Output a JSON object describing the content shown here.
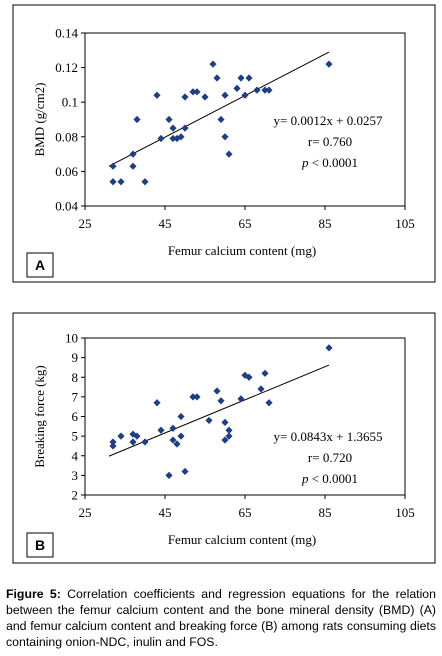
{
  "chart_data": [
    {
      "type": "scatter",
      "panel_label": "A",
      "xlabel": "Femur calcium content (mg)",
      "ylabel": "BMD (g/cm2)",
      "color": "#1f3f80",
      "xlim": [
        25,
        105
      ],
      "xticks": [
        25,
        45,
        65,
        85,
        105
      ],
      "ylim": [
        0.04,
        0.14
      ],
      "yticks": [
        0.04,
        0.06,
        0.08,
        0.1,
        0.12,
        0.14
      ],
      "x": [
        32,
        32,
        34,
        37,
        37,
        38,
        40,
        43,
        44,
        46,
        47,
        47,
        48,
        49,
        50,
        50,
        52,
        53,
        55,
        57,
        58,
        59,
        60,
        60,
        61,
        63,
        64,
        65,
        66,
        68,
        70,
        71,
        86
      ],
      "y": [
        0.063,
        0.054,
        0.054,
        0.063,
        0.07,
        0.09,
        0.054,
        0.104,
        0.079,
        0.09,
        0.085,
        0.079,
        0.079,
        0.08,
        0.085,
        0.103,
        0.106,
        0.106,
        0.103,
        0.122,
        0.114,
        0.09,
        0.08,
        0.104,
        0.07,
        0.108,
        0.114,
        0.104,
        0.114,
        0.107,
        0.107,
        0.107,
        0.122
      ],
      "fit_line": {
        "x": [
          31,
          86
        ],
        "y": [
          0.063,
          0.129
        ]
      },
      "annotation": {
        "equation": "y= 0.0012x + 0.0257",
        "r": "r= 0.760",
        "p_symbol": "p",
        "p_text": " < 0.0001"
      }
    },
    {
      "type": "scatter",
      "panel_label": "B",
      "xlabel": "Femur calcium content (mg)",
      "ylabel": "Breaking force (kg)",
      "color": "#1f3f80",
      "xlim": [
        25,
        105
      ],
      "xticks": [
        25,
        45,
        65,
        85,
        105
      ],
      "ylim": [
        2,
        10
      ],
      "yticks": [
        2,
        3,
        4,
        5,
        6,
        7,
        8,
        9,
        10
      ],
      "x": [
        32,
        32,
        34,
        37,
        37,
        38,
        40,
        43,
        44,
        46,
        47,
        47,
        48,
        49,
        49,
        50,
        52,
        53,
        56,
        58,
        59,
        60,
        60,
        61,
        61,
        64,
        65,
        66,
        69,
        70,
        71,
        86
      ],
      "y": [
        4.7,
        4.5,
        5.0,
        5.1,
        4.7,
        5.0,
        4.7,
        6.7,
        5.3,
        3.0,
        5.4,
        4.8,
        4.6,
        5.0,
        6.0,
        3.2,
        7.0,
        7.0,
        5.8,
        7.3,
        6.8,
        5.7,
        4.8,
        5.0,
        5.3,
        6.9,
        8.1,
        8.0,
        7.4,
        8.2,
        6.7,
        9.5
      ],
      "fit_line": {
        "x": [
          31,
          86
        ],
        "y": [
          3.98,
          8.62
        ]
      },
      "annotation": {
        "equation": "y= 0.0843x + 1.3655",
        "r": "r= 0.720",
        "p_symbol": "p",
        "p_text": " < 0.0001"
      }
    }
  ],
  "caption": {
    "label": "Figure 5:",
    "text": " Correlation coefficients and regression equations for the relation between the femur calcium content and the bone mineral density (BMD) (A) and femur calcium content and breaking force (B) among rats consuming diets containing onion-NDC, inulin and FOS."
  }
}
